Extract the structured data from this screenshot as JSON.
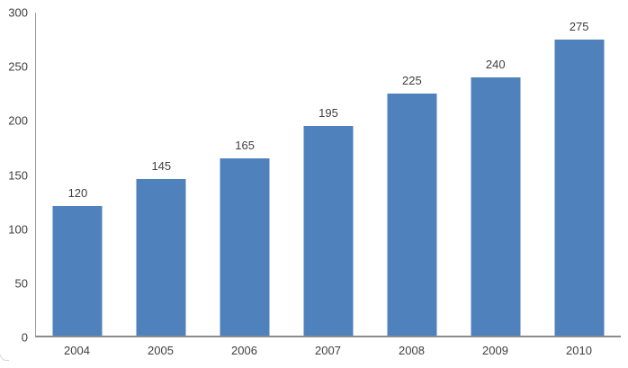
{
  "chart_data": {
    "type": "bar",
    "title": "",
    "xlabel": "",
    "ylabel": "",
    "categories": [
      "2004",
      "2005",
      "2006",
      "2007",
      "2008",
      "2009",
      "2010"
    ],
    "values": [
      120,
      145,
      165,
      195,
      225,
      240,
      275
    ],
    "data_labels": [
      "120",
      "145",
      "165",
      "195",
      "225",
      "240",
      "275"
    ],
    "ylim": [
      0,
      300
    ],
    "yticks": [
      0,
      50,
      100,
      150,
      200,
      250,
      300
    ],
    "grid": false,
    "legend": false,
    "bar_color": "#4F81BD",
    "axis_line_color": "#8C8C8C",
    "text_color": "#3F3F3F",
    "background_color": "#FFFFFF"
  }
}
